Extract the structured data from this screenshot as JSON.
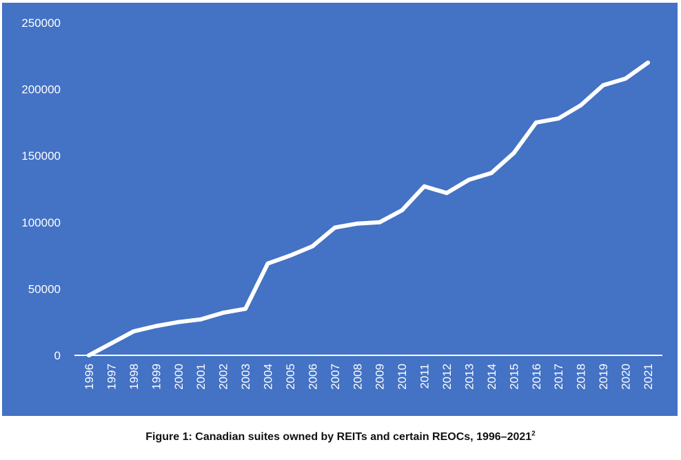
{
  "caption": {
    "text": "Figure 1: Canadian suites owned by REITs and certain REOCs, 1996–2021",
    "footnote": "2"
  },
  "colors": {
    "background": "#4472c4",
    "line": "#ffffff",
    "text": "#ffffff"
  },
  "chart_data": {
    "type": "line",
    "title": "",
    "xlabel": "",
    "ylabel": "",
    "x": [
      "1996",
      "1997",
      "1998",
      "1999",
      "2000",
      "2001",
      "2002",
      "2003",
      "2004",
      "2005",
      "2006",
      "2007",
      "2008",
      "2009",
      "2010",
      "2011",
      "2012",
      "2013",
      "2014",
      "2015",
      "2016",
      "2017",
      "2018",
      "2019",
      "2020",
      "2021"
    ],
    "values": [
      0,
      9000,
      18000,
      22000,
      25000,
      27000,
      32000,
      35000,
      69000,
      75000,
      82000,
      96000,
      99000,
      100000,
      109000,
      127000,
      122000,
      132000,
      137000,
      152000,
      175000,
      178000,
      188000,
      203000,
      208000,
      220000
    ],
    "ylim": [
      0,
      250000
    ],
    "yticks": [
      "0",
      "50000",
      "100000",
      "150000",
      "200000",
      "250000"
    ],
    "drop_lines": true,
    "grid": false,
    "legend": "none"
  }
}
